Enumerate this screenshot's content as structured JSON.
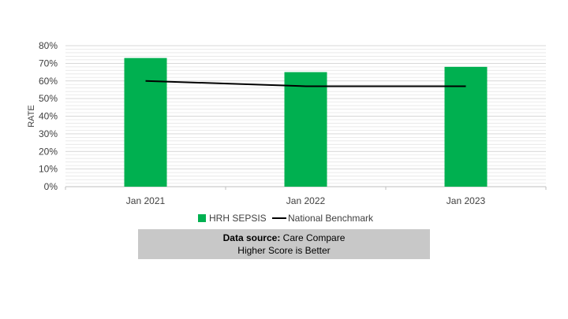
{
  "chart_data": {
    "type": "bar",
    "categories": [
      "Jan 2021",
      "Jan 2022",
      "Jan 2023"
    ],
    "series": [
      {
        "name": "HRH SEPSIS",
        "kind": "bar",
        "color": "#00b050",
        "values": [
          73,
          65,
          68
        ]
      },
      {
        "name": "National Benchmark",
        "kind": "line",
        "color": "#000000",
        "values": [
          60,
          57,
          57
        ]
      }
    ],
    "ylabel": "RATE",
    "ylim": [
      0,
      80
    ],
    "yticks": [
      "0%",
      "10%",
      "20%",
      "30%",
      "40%",
      "50%",
      "60%",
      "70%",
      "80%"
    ],
    "grid": true,
    "legend_position": "bottom"
  },
  "footer": {
    "source_label": "Data source:",
    "source_value": "Care Compare",
    "note": "Higher Score is Better"
  }
}
